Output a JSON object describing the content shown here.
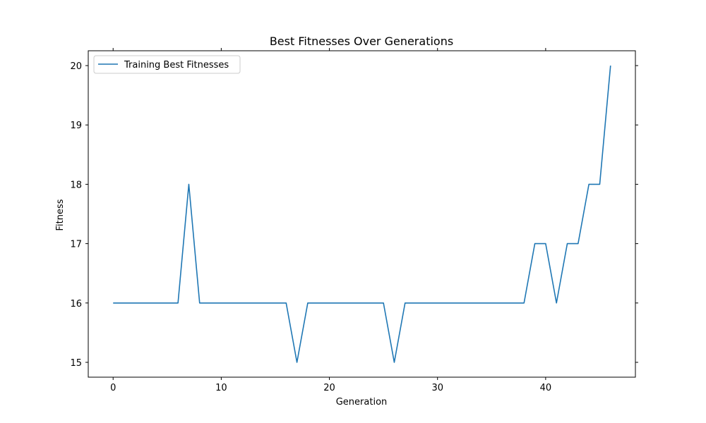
{
  "chart_data": {
    "type": "line",
    "title": "Best Fitnesses Over Generations",
    "xlabel": "Generation",
    "ylabel": "Fitness",
    "xlim": [
      -2.3,
      48.3
    ],
    "ylim": [
      14.75,
      20.25
    ],
    "xticks": [
      0,
      10,
      20,
      30,
      40
    ],
    "yticks": [
      15,
      16,
      17,
      18,
      19,
      20
    ],
    "grid": false,
    "legend_position": "top-left",
    "series": [
      {
        "name": "Training Best Fitnesses",
        "color": "#1f77b4",
        "x": [
          0,
          1,
          2,
          3,
          4,
          5,
          6,
          7,
          8,
          9,
          10,
          11,
          12,
          13,
          14,
          15,
          16,
          17,
          18,
          19,
          20,
          21,
          22,
          23,
          24,
          25,
          26,
          27,
          28,
          29,
          30,
          31,
          32,
          33,
          34,
          35,
          36,
          37,
          38,
          39,
          40,
          41,
          42,
          43,
          44,
          45,
          46
        ],
        "y": [
          16,
          16,
          16,
          16,
          16,
          16,
          16,
          18,
          16,
          16,
          16,
          16,
          16,
          16,
          16,
          16,
          16,
          15,
          16,
          16,
          16,
          16,
          16,
          16,
          16,
          16,
          15,
          16,
          16,
          16,
          16,
          16,
          16,
          16,
          16,
          16,
          16,
          16,
          16,
          17,
          17,
          16,
          17,
          17,
          18,
          18,
          20
        ]
      }
    ]
  }
}
